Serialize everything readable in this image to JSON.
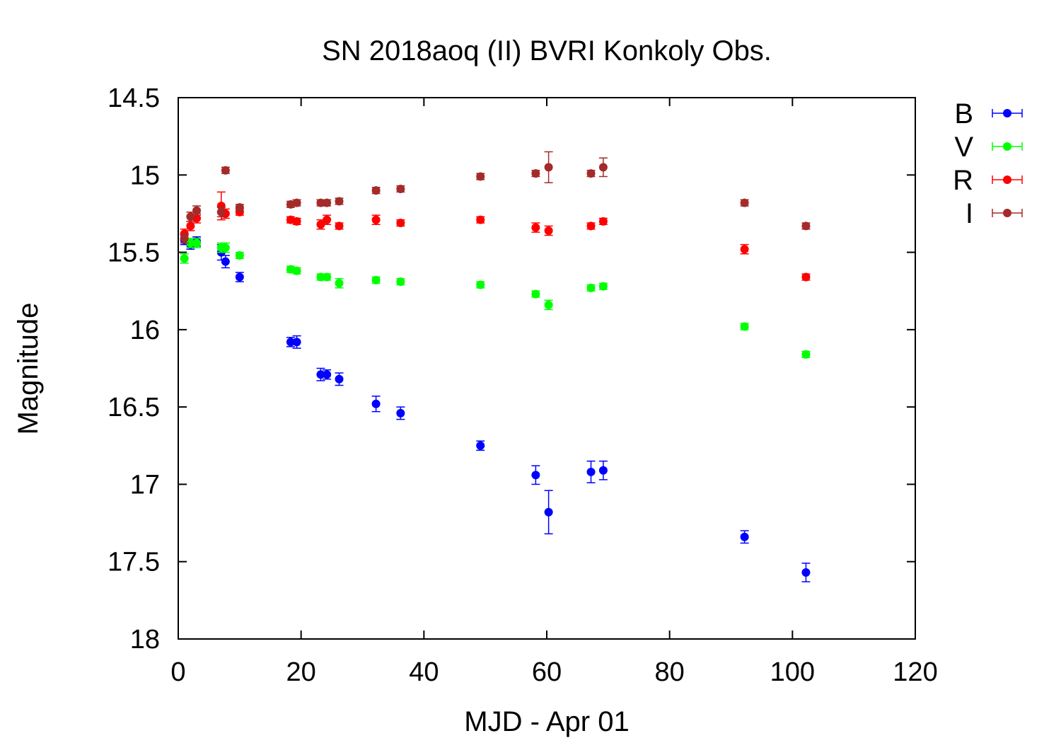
{
  "chart_data": {
    "type": "scatter",
    "title": "SN 2018aoq (II) BVRI Konkoly Obs.",
    "xlabel": "MJD - Apr 01",
    "ylabel": "Magnitude",
    "xlim": [
      0,
      120
    ],
    "ylim": [
      18,
      14.5
    ],
    "y_inverted": true,
    "x_ticks": [
      "0",
      "20",
      "40",
      "60",
      "80",
      "100",
      "120"
    ],
    "y_ticks": [
      "14.5",
      "15",
      "15.5",
      "16",
      "16.5",
      "17",
      "17.5",
      "18"
    ],
    "grid": false,
    "legend_position": "right",
    "series": [
      {
        "name": "B",
        "color": "#0000ff",
        "points": [
          {
            "x": 1.0,
            "y": 15.42,
            "err": 0.03
          },
          {
            "x": 2.0,
            "y": 15.45,
            "err": 0.03
          },
          {
            "x": 3.0,
            "y": 15.43,
            "err": 0.03
          },
          {
            "x": 7.0,
            "y": 15.5,
            "err": 0.05
          },
          {
            "x": 7.7,
            "y": 15.56,
            "err": 0.04
          },
          {
            "x": 10.0,
            "y": 15.66,
            "err": 0.03
          },
          {
            "x": 18.3,
            "y": 16.08,
            "err": 0.03
          },
          {
            "x": 19.3,
            "y": 16.08,
            "err": 0.04
          },
          {
            "x": 23.2,
            "y": 16.29,
            "err": 0.04
          },
          {
            "x": 24.2,
            "y": 16.29,
            "err": 0.03
          },
          {
            "x": 26.2,
            "y": 16.32,
            "err": 0.04
          },
          {
            "x": 32.2,
            "y": 16.48,
            "err": 0.05
          },
          {
            "x": 36.2,
            "y": 16.54,
            "err": 0.04
          },
          {
            "x": 49.2,
            "y": 16.75,
            "err": 0.03
          },
          {
            "x": 58.2,
            "y": 16.94,
            "err": 0.06
          },
          {
            "x": 60.3,
            "y": 17.18,
            "err": 0.14
          },
          {
            "x": 67.2,
            "y": 16.92,
            "err": 0.07
          },
          {
            "x": 69.2,
            "y": 16.91,
            "err": 0.06
          },
          {
            "x": 92.2,
            "y": 17.34,
            "err": 0.04
          },
          {
            "x": 102.2,
            "y": 17.57,
            "err": 0.06
          }
        ]
      },
      {
        "name": "V",
        "color": "#00ff00",
        "points": [
          {
            "x": 1.0,
            "y": 15.54,
            "err": 0.03
          },
          {
            "x": 2.0,
            "y": 15.44,
            "err": 0.03
          },
          {
            "x": 3.0,
            "y": 15.44,
            "err": 0.03
          },
          {
            "x": 7.0,
            "y": 15.47,
            "err": 0.03
          },
          {
            "x": 7.7,
            "y": 15.47,
            "err": 0.03
          },
          {
            "x": 10.0,
            "y": 15.52,
            "err": 0.02
          },
          {
            "x": 18.3,
            "y": 15.61,
            "err": 0.02
          },
          {
            "x": 19.3,
            "y": 15.62,
            "err": 0.02
          },
          {
            "x": 23.2,
            "y": 15.66,
            "err": 0.02
          },
          {
            "x": 24.2,
            "y": 15.66,
            "err": 0.02
          },
          {
            "x": 26.2,
            "y": 15.7,
            "err": 0.03
          },
          {
            "x": 32.2,
            "y": 15.68,
            "err": 0.02
          },
          {
            "x": 36.2,
            "y": 15.69,
            "err": 0.02
          },
          {
            "x": 49.2,
            "y": 15.71,
            "err": 0.02
          },
          {
            "x": 58.2,
            "y": 15.77,
            "err": 0.02
          },
          {
            "x": 60.3,
            "y": 15.84,
            "err": 0.03
          },
          {
            "x": 67.2,
            "y": 15.73,
            "err": 0.02
          },
          {
            "x": 69.2,
            "y": 15.72,
            "err": 0.02
          },
          {
            "x": 92.2,
            "y": 15.98,
            "err": 0.02
          },
          {
            "x": 102.2,
            "y": 16.16,
            "err": 0.02
          }
        ]
      },
      {
        "name": "R",
        "color": "#ff0000",
        "points": [
          {
            "x": 1.0,
            "y": 15.38,
            "err": 0.03
          },
          {
            "x": 2.0,
            "y": 15.33,
            "err": 0.03
          },
          {
            "x": 3.0,
            "y": 15.28,
            "err": 0.03
          },
          {
            "x": 7.0,
            "y": 15.2,
            "err": 0.09
          },
          {
            "x": 7.7,
            "y": 15.25,
            "err": 0.03
          },
          {
            "x": 10.0,
            "y": 15.24,
            "err": 0.02
          },
          {
            "x": 18.3,
            "y": 15.29,
            "err": 0.02
          },
          {
            "x": 19.3,
            "y": 15.3,
            "err": 0.02
          },
          {
            "x": 23.2,
            "y": 15.32,
            "err": 0.03
          },
          {
            "x": 24.2,
            "y": 15.29,
            "err": 0.03
          },
          {
            "x": 26.2,
            "y": 15.33,
            "err": 0.02
          },
          {
            "x": 32.2,
            "y": 15.29,
            "err": 0.03
          },
          {
            "x": 36.2,
            "y": 15.31,
            "err": 0.02
          },
          {
            "x": 49.2,
            "y": 15.29,
            "err": 0.02
          },
          {
            "x": 58.2,
            "y": 15.34,
            "err": 0.03
          },
          {
            "x": 60.3,
            "y": 15.36,
            "err": 0.03
          },
          {
            "x": 67.2,
            "y": 15.33,
            "err": 0.02
          },
          {
            "x": 69.2,
            "y": 15.3,
            "err": 0.02
          },
          {
            "x": 92.2,
            "y": 15.48,
            "err": 0.03
          },
          {
            "x": 102.2,
            "y": 15.66,
            "err": 0.02
          }
        ]
      },
      {
        "name": "I",
        "color": "#a52a2a",
        "points": [
          {
            "x": 1.0,
            "y": 15.41,
            "err": 0.03
          },
          {
            "x": 2.0,
            "y": 15.27,
            "err": 0.03
          },
          {
            "x": 3.0,
            "y": 15.23,
            "err": 0.03
          },
          {
            "x": 7.0,
            "y": 15.24,
            "err": 0.03
          },
          {
            "x": 7.7,
            "y": 14.97,
            "err": 0.02
          },
          {
            "x": 10.0,
            "y": 15.21,
            "err": 0.02
          },
          {
            "x": 18.3,
            "y": 15.19,
            "err": 0.02
          },
          {
            "x": 19.3,
            "y": 15.18,
            "err": 0.02
          },
          {
            "x": 23.2,
            "y": 15.18,
            "err": 0.02
          },
          {
            "x": 24.2,
            "y": 15.18,
            "err": 0.02
          },
          {
            "x": 26.2,
            "y": 15.17,
            "err": 0.02
          },
          {
            "x": 32.2,
            "y": 15.1,
            "err": 0.02
          },
          {
            "x": 36.2,
            "y": 15.09,
            "err": 0.02
          },
          {
            "x": 49.2,
            "y": 15.01,
            "err": 0.02
          },
          {
            "x": 58.2,
            "y": 14.99,
            "err": 0.02
          },
          {
            "x": 60.3,
            "y": 14.95,
            "err": 0.1
          },
          {
            "x": 67.2,
            "y": 14.99,
            "err": 0.02
          },
          {
            "x": 69.2,
            "y": 14.95,
            "err": 0.06
          },
          {
            "x": 92.2,
            "y": 15.18,
            "err": 0.02
          },
          {
            "x": 102.2,
            "y": 15.33,
            "err": 0.02
          }
        ]
      }
    ]
  }
}
